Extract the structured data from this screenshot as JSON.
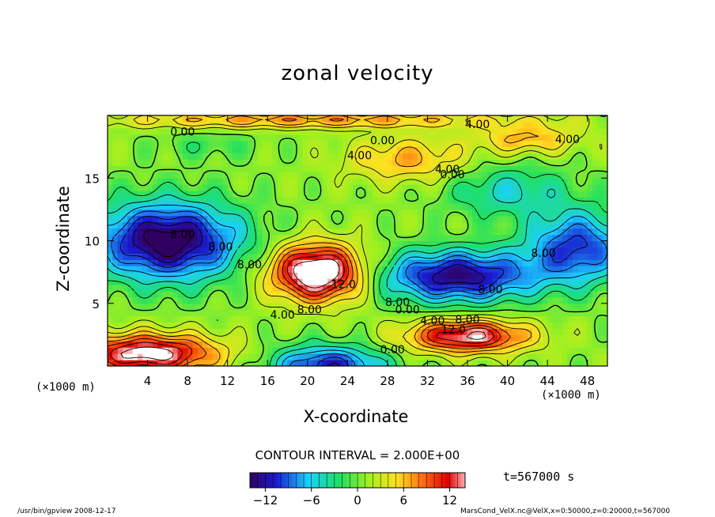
{
  "title": "zonal velocity",
  "footer_left": "/usr/bin/gpview   2008-12-17",
  "footer_right": "MarsCond_VelX.nc@VelX,x=0:50000,z=0:20000,t=567000",
  "contour_interval_text": "CONTOUR INTERVAL = 2.000E+00",
  "time_text": "t=567000 s",
  "chart_data": {
    "type": "heatmap",
    "title": "zonal velocity",
    "xlabel": "X-coordinate",
    "ylabel": "Z-coordinate",
    "x_unit": "(×1000 m)",
    "xlim": [
      0,
      50
    ],
    "ylim": [
      0,
      20
    ],
    "x_ticks": [
      4,
      8,
      12,
      16,
      20,
      24,
      28,
      32,
      36,
      40,
      44,
      48
    ],
    "y_ticks": [
      5,
      10,
      15
    ],
    "colorbar": {
      "range": [
        -14,
        14
      ],
      "ticks": [
        -12,
        -6,
        0,
        6,
        12
      ],
      "colormap": "rainbow",
      "low_color": "#2a005a",
      "high_color": "#ffffff"
    },
    "features": [
      {
        "type": "jet",
        "sign": "negative",
        "x": 6,
        "z": 9.8,
        "value": -14
      },
      {
        "type": "jet",
        "sign": "positive",
        "x": 21,
        "z": 7.5,
        "value": 14
      },
      {
        "type": "jet",
        "sign": "negative",
        "x": 34,
        "z": 6.9,
        "value": -14
      },
      {
        "type": "jet",
        "sign": "positive",
        "x": 4,
        "z": 1.3,
        "value": 14
      },
      {
        "type": "jet",
        "sign": "positive",
        "x": 36,
        "z": 2.5,
        "value": 12
      },
      {
        "type": "jet",
        "sign": "negative",
        "x": 22,
        "z": 0.4,
        "value": -10
      },
      {
        "type": "jet",
        "sign": "negative",
        "x": 46,
        "z": 9.5,
        "value": -10
      },
      {
        "type": "jet",
        "sign": "positive",
        "x": 31,
        "z": 17,
        "value": 6
      },
      {
        "type": "jet",
        "sign": "positive",
        "x": 42,
        "z": 18,
        "value": 6
      }
    ],
    "contour_labels": [
      {
        "text": "8.00",
        "x": 7.5,
        "z": 10.2
      },
      {
        "text": "8.00",
        "x": 11.3,
        "z": 9.2
      },
      {
        "text": "8.00",
        "x": 14.2,
        "z": 7.8
      },
      {
        "text": "4.00",
        "x": 17.5,
        "z": 3.8
      },
      {
        "text": "8.00",
        "x": 20.2,
        "z": 4.2
      },
      {
        "text": "12.0",
        "x": 23.6,
        "z": 6.2
      },
      {
        "text": "0.00",
        "x": 7.5,
        "z": 18.4
      },
      {
        "text": "0.00",
        "x": 27.5,
        "z": 17.7
      },
      {
        "text": "4.00",
        "x": 25.2,
        "z": 16.5
      },
      {
        "text": "4.00",
        "x": 37.0,
        "z": 19.0
      },
      {
        "text": "4.00",
        "x": 46.0,
        "z": 17.8
      },
      {
        "text": "4.00",
        "x": 34.0,
        "z": 15.4
      },
      {
        "text": "0.00",
        "x": 34.5,
        "z": 15.0
      },
      {
        "text": "8.00",
        "x": 43.6,
        "z": 8.7
      },
      {
        "text": "8.00",
        "x": 38.3,
        "z": 5.8
      },
      {
        "text": "8.00",
        "x": 29.0,
        "z": 4.8
      },
      {
        "text": "0.00",
        "x": 30.0,
        "z": 4.2
      },
      {
        "text": "4.00",
        "x": 32.5,
        "z": 3.3
      },
      {
        "text": "8.00",
        "x": 36.0,
        "z": 3.4
      },
      {
        "text": "12.0",
        "x": 34.6,
        "z": 2.6
      },
      {
        "text": "0.00",
        "x": 28.5,
        "z": 1.0
      }
    ]
  }
}
